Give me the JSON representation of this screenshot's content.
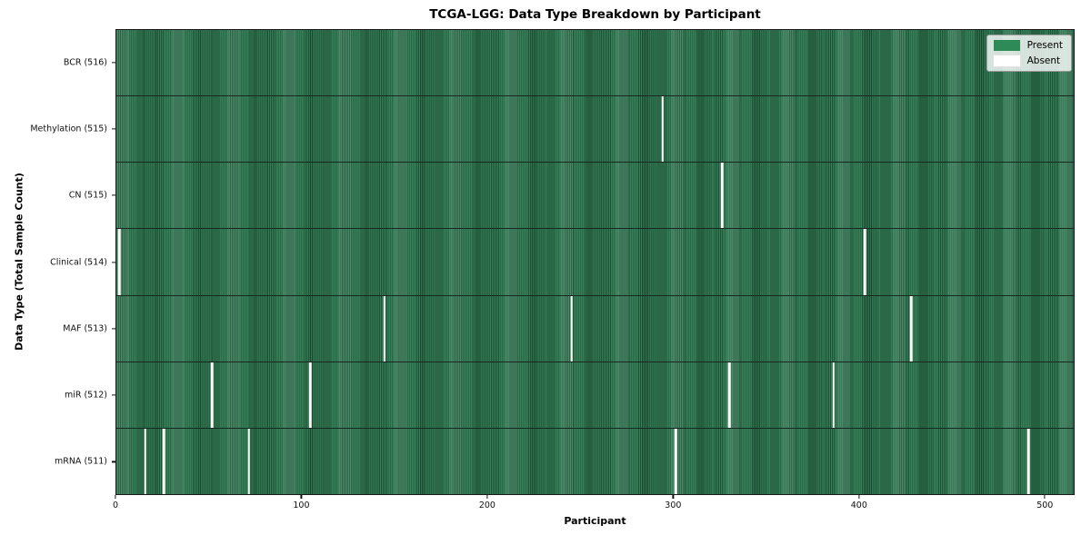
{
  "chart_data": {
    "type": "heatmap",
    "title": "TCGA-LGG: Data Type Breakdown by Participant",
    "xlabel": "Participant",
    "ylabel": "Data Type (Total Sample Count)",
    "n_participants": 516,
    "xlim": [
      0,
      516
    ],
    "x_ticks": [
      0,
      100,
      200,
      300,
      400,
      500
    ],
    "grid": false,
    "legend_position": "upper right",
    "legend": [
      {
        "label": "Present",
        "color": "#2e8b57"
      },
      {
        "label": "Absent",
        "color": "#ffffff"
      }
    ],
    "colors": {
      "present": "#2e8b57",
      "present_stripe_dark": "#1d5034",
      "absent": "#fdfdfa",
      "legend_border": "#9a9a9a"
    },
    "rows": [
      {
        "label": "BCR (516)",
        "data_type": "BCR",
        "present_count": 516,
        "absent_participants": []
      },
      {
        "label": "Methylation (515)",
        "data_type": "Methylation",
        "present_count": 515,
        "absent_participants": [
          294
        ]
      },
      {
        "label": "CN (515)",
        "data_type": "CN",
        "present_count": 515,
        "absent_participants": [
          326
        ]
      },
      {
        "label": "Clinical (514)",
        "data_type": "Clinical",
        "present_count": 514,
        "absent_participants": [
          1,
          403
        ]
      },
      {
        "label": "MAF (513)",
        "data_type": "MAF",
        "present_count": 513,
        "absent_participants": [
          144,
          245,
          428
        ]
      },
      {
        "label": "miR (512)",
        "data_type": "miR",
        "present_count": 512,
        "absent_participants": [
          51,
          104,
          330,
          386
        ]
      },
      {
        "label": "mRNA (511)",
        "data_type": "mRNA",
        "present_count": 511,
        "absent_participants": [
          15,
          25,
          71,
          301,
          491
        ]
      }
    ]
  }
}
